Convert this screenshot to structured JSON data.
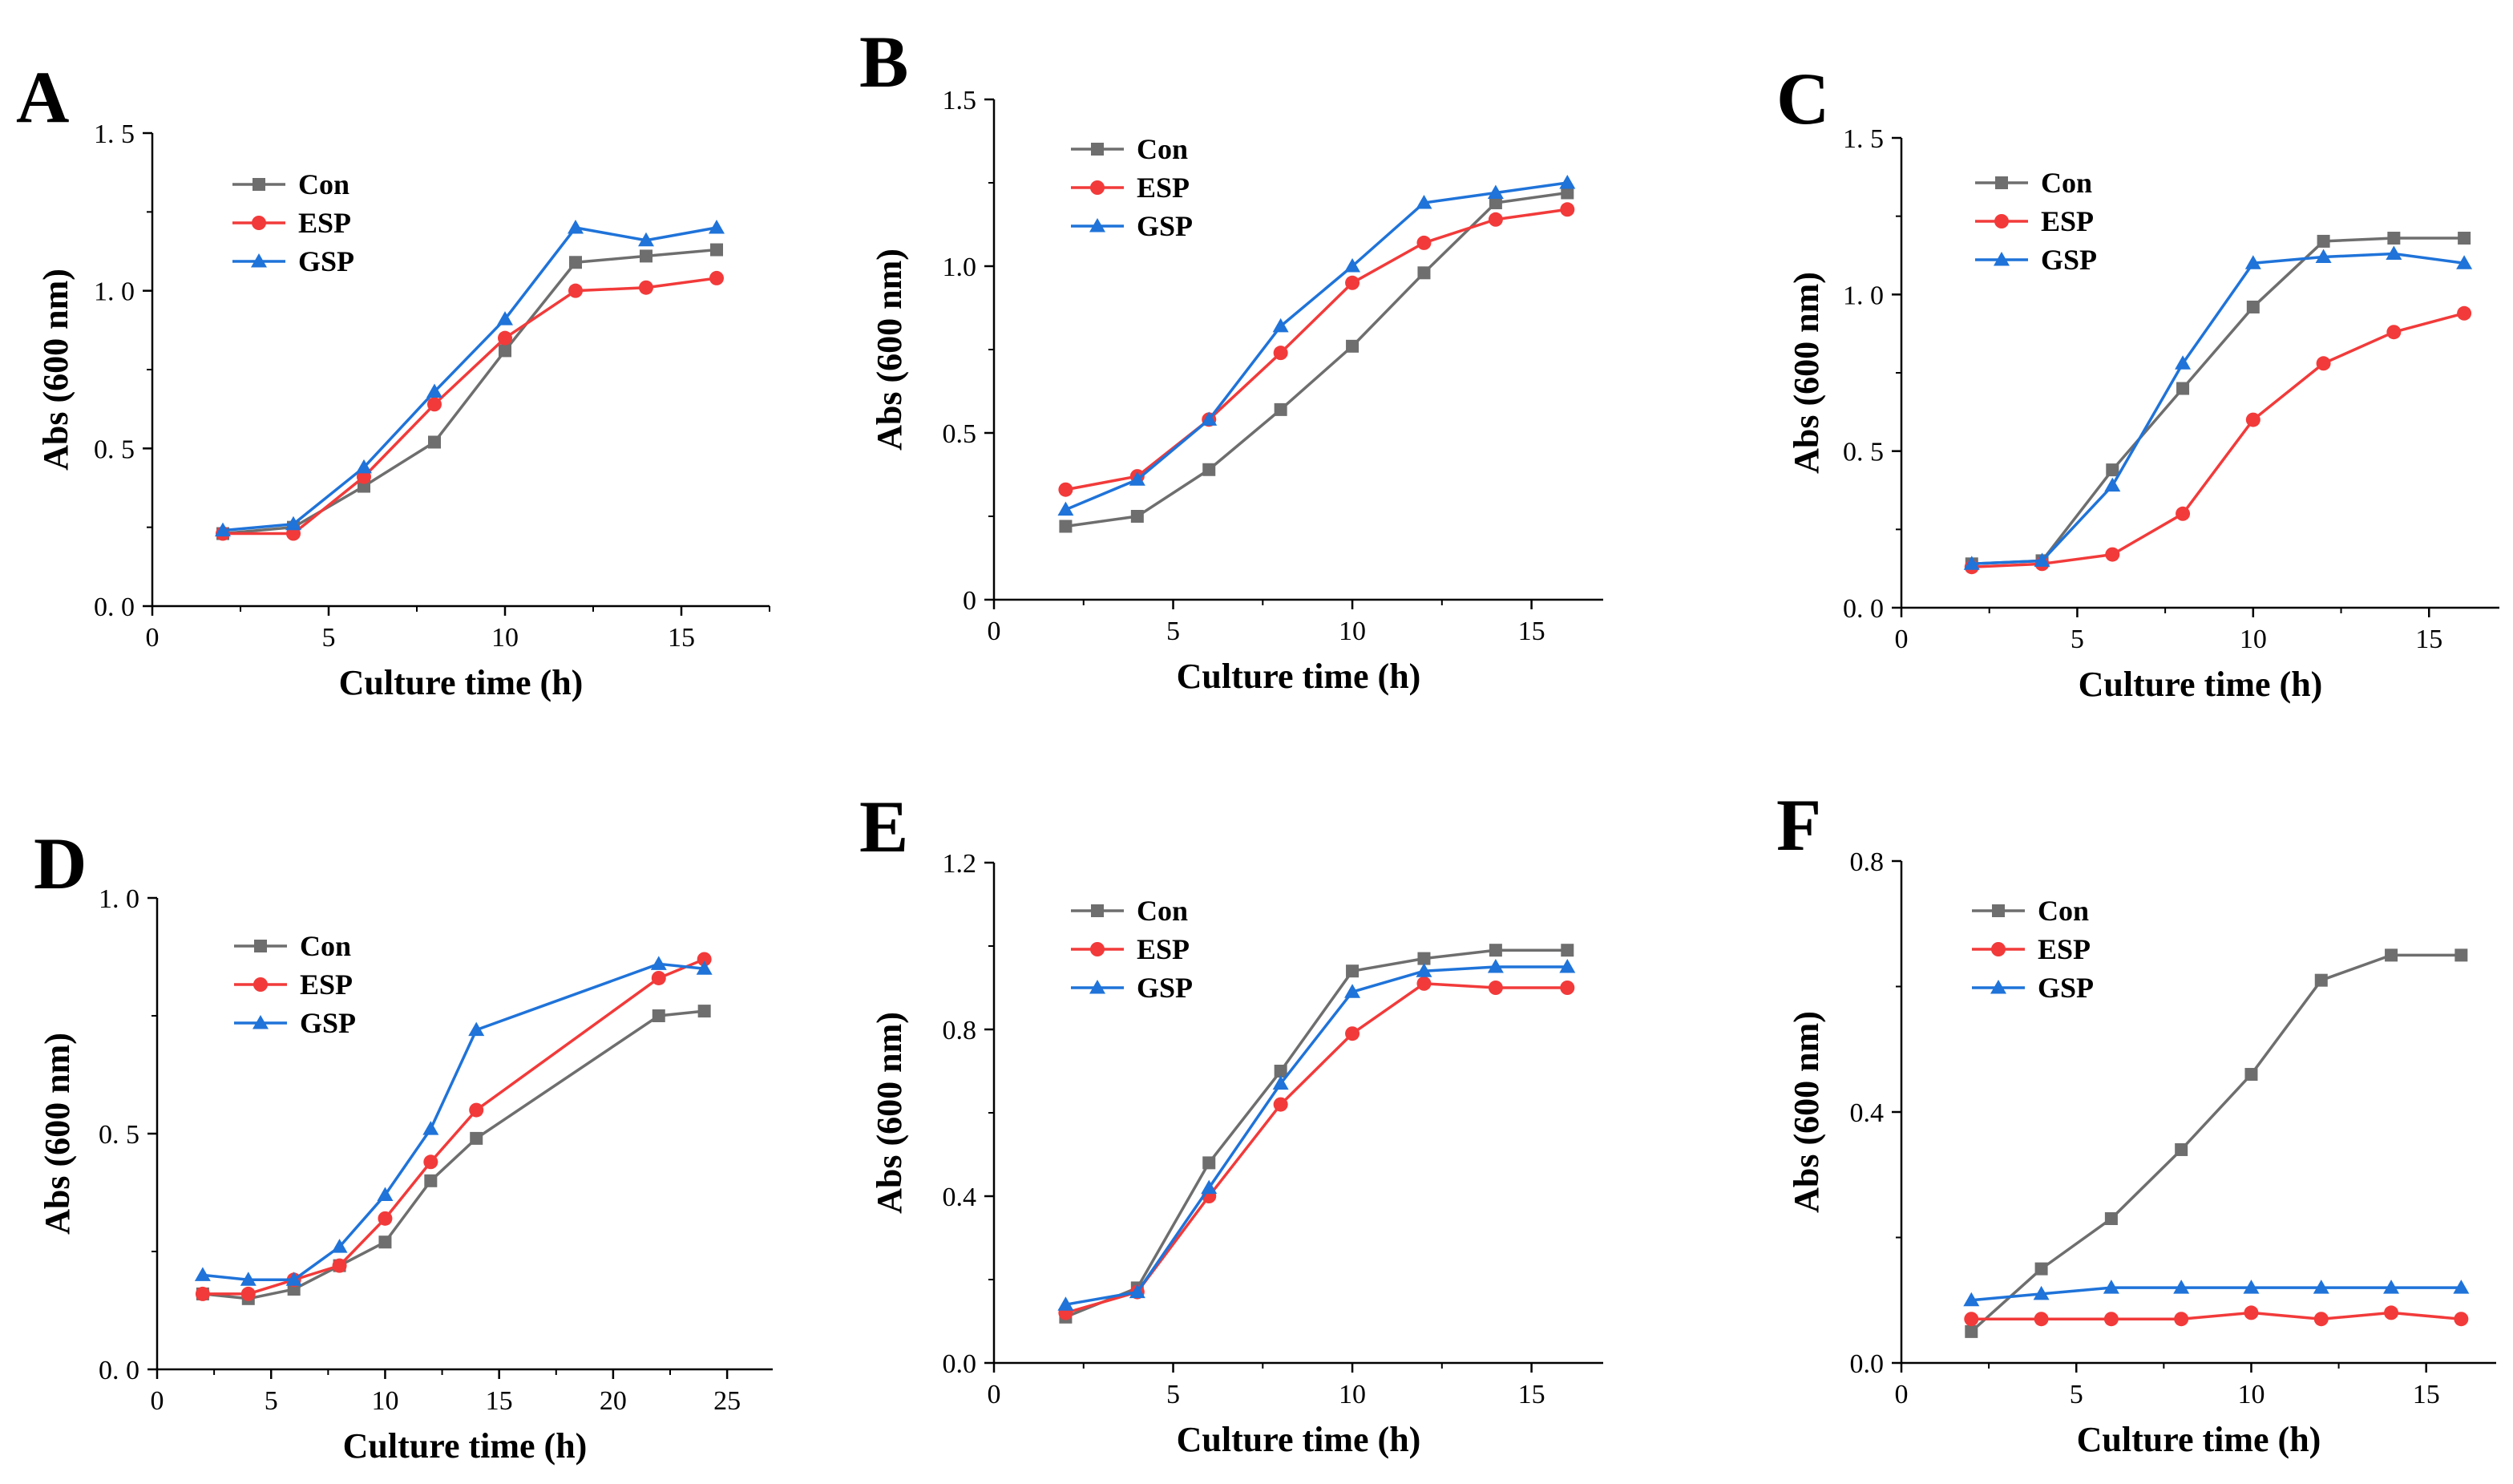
{
  "colors": {
    "Con": "#6e6e6e",
    "ESP": "#f23a3a",
    "GSP": "#1f73d9"
  },
  "chart_data": [
    {
      "panel": "A",
      "type": "line",
      "xlabel": "Culture time (h)",
      "ylabel": "Abs (600 nm)",
      "xlim": [
        0,
        17.5
      ],
      "ylim": [
        0,
        1.5
      ],
      "xticks": [
        "0",
        "5",
        "10",
        "15"
      ],
      "yticks": [
        "0. 0",
        "0. 5",
        "1. 0",
        "1. 5"
      ],
      "legend": [
        "Con",
        "ESP",
        "GSP"
      ],
      "x": [
        2,
        4,
        6,
        8,
        10,
        12,
        14,
        16
      ],
      "series": [
        {
          "name": "Con",
          "marker": "square",
          "values": [
            0.23,
            0.25,
            0.38,
            0.52,
            0.81,
            1.09,
            1.11,
            1.13
          ]
        },
        {
          "name": "ESP",
          "marker": "circle",
          "values": [
            0.23,
            0.23,
            0.41,
            0.64,
            0.85,
            1.0,
            1.01,
            1.04
          ]
        },
        {
          "name": "GSP",
          "marker": "triangle",
          "values": [
            0.24,
            0.26,
            0.44,
            0.68,
            0.91,
            1.2,
            1.16,
            1.2
          ]
        }
      ]
    },
    {
      "panel": "B",
      "type": "line",
      "xlabel": "Culture time (h)",
      "ylabel": "Abs (600 nm)",
      "xlim": [
        0,
        17
      ],
      "ylim": [
        0,
        1.5
      ],
      "xticks": [
        "0",
        "5",
        "10",
        "15"
      ],
      "yticks": [
        "0",
        "0.5",
        "1.0",
        "1.5"
      ],
      "legend": [
        "Con",
        "ESP",
        "GSP"
      ],
      "x": [
        2,
        4,
        6,
        8,
        10,
        12,
        14,
        16
      ],
      "series": [
        {
          "name": "Con",
          "marker": "square",
          "values": [
            0.22,
            0.25,
            0.39,
            0.57,
            0.76,
            0.98,
            1.19,
            1.22
          ]
        },
        {
          "name": "ESP",
          "marker": "circle",
          "values": [
            0.33,
            0.37,
            0.54,
            0.74,
            0.95,
            1.07,
            1.14,
            1.17
          ]
        },
        {
          "name": "GSP",
          "marker": "triangle",
          "values": [
            0.27,
            0.36,
            0.54,
            0.82,
            1.0,
            1.19,
            1.22,
            1.25
          ]
        }
      ]
    },
    {
      "panel": "C",
      "type": "line",
      "xlabel": "Culture time (h)",
      "ylabel": "Abs (600 nm)",
      "xlim": [
        0,
        17
      ],
      "ylim": [
        0,
        1.5
      ],
      "xticks": [
        "0",
        "5",
        "10",
        "15"
      ],
      "yticks": [
        "0. 0",
        "0. 5",
        "1. 0",
        "1. 5"
      ],
      "legend": [
        "Con",
        "ESP",
        "GSP"
      ],
      "x": [
        2,
        4,
        6,
        8,
        10,
        12,
        14,
        16
      ],
      "series": [
        {
          "name": "Con",
          "marker": "square",
          "values": [
            0.14,
            0.15,
            0.44,
            0.7,
            0.96,
            1.17,
            1.18,
            1.18
          ]
        },
        {
          "name": "ESP",
          "marker": "circle",
          "values": [
            0.13,
            0.14,
            0.17,
            0.3,
            0.6,
            0.78,
            0.88,
            0.94
          ]
        },
        {
          "name": "GSP",
          "marker": "triangle",
          "values": [
            0.14,
            0.15,
            0.39,
            0.78,
            1.1,
            1.12,
            1.13,
            1.1
          ]
        }
      ]
    },
    {
      "panel": "D",
      "type": "line",
      "xlabel": "Culture time (h)",
      "ylabel": "Abs (600 nm)",
      "xlim": [
        0,
        27
      ],
      "ylim": [
        0,
        1.0
      ],
      "xticks": [
        "0",
        "5",
        "10",
        "15",
        "20",
        "25"
      ],
      "yticks": [
        "0. 0",
        "0. 5",
        "1. 0"
      ],
      "legend": [
        "Con",
        "ESP",
        "GSP"
      ],
      "x": [
        2,
        4,
        6,
        8,
        10,
        12,
        14,
        22,
        24
      ],
      "series": [
        {
          "name": "Con",
          "marker": "square",
          "values": [
            0.16,
            0.15,
            0.17,
            0.22,
            0.27,
            0.4,
            0.49,
            0.75,
            0.76
          ]
        },
        {
          "name": "ESP",
          "marker": "circle",
          "values": [
            0.16,
            0.16,
            0.19,
            0.22,
            0.32,
            0.44,
            0.55,
            0.83,
            0.87
          ]
        },
        {
          "name": "GSP",
          "marker": "triangle",
          "values": [
            0.2,
            0.19,
            0.19,
            0.26,
            0.37,
            0.51,
            0.72,
            0.86,
            0.85
          ]
        }
      ]
    },
    {
      "panel": "E",
      "type": "line",
      "xlabel": "Culture time (h)",
      "ylabel": "Abs (600 nm)",
      "xlim": [
        0,
        17
      ],
      "ylim": [
        0,
        1.2
      ],
      "xticks": [
        "0",
        "5",
        "10",
        "15"
      ],
      "yticks": [
        "0.0",
        "0.4",
        "0.8",
        "1.2"
      ],
      "legend": [
        "Con",
        "ESP",
        "GSP"
      ],
      "x": [
        2,
        4,
        6,
        8,
        10,
        12,
        14,
        16
      ],
      "series": [
        {
          "name": "Con",
          "marker": "square",
          "values": [
            0.11,
            0.18,
            0.48,
            0.7,
            0.94,
            0.97,
            0.99,
            0.99
          ]
        },
        {
          "name": "ESP",
          "marker": "circle",
          "values": [
            0.12,
            0.17,
            0.4,
            0.62,
            0.79,
            0.91,
            0.9,
            0.9
          ]
        },
        {
          "name": "GSP",
          "marker": "triangle",
          "values": [
            0.14,
            0.17,
            0.42,
            0.67,
            0.89,
            0.94,
            0.95,
            0.95
          ]
        }
      ]
    },
    {
      "panel": "F",
      "type": "line",
      "xlabel": "Culture time (h)",
      "ylabel": "Abs (600 nm)",
      "xlim": [
        0,
        17
      ],
      "ylim": [
        0,
        0.8
      ],
      "xticks": [
        "0",
        "5",
        "10",
        "15"
      ],
      "yticks": [
        "0.0",
        "0.4",
        "0.8"
      ],
      "legend": [
        "Con",
        "ESP",
        "GSP"
      ],
      "x": [
        2,
        4,
        6,
        8,
        10,
        12,
        14,
        16
      ],
      "series": [
        {
          "name": "Con",
          "marker": "square",
          "values": [
            0.05,
            0.15,
            0.23,
            0.34,
            0.46,
            0.61,
            0.65,
            0.65
          ]
        },
        {
          "name": "ESP",
          "marker": "circle",
          "values": [
            0.07,
            0.07,
            0.07,
            0.07,
            0.08,
            0.07,
            0.08,
            0.07
          ]
        },
        {
          "name": "GSP",
          "marker": "triangle",
          "values": [
            0.1,
            0.11,
            0.12,
            0.12,
            0.12,
            0.12,
            0.12,
            0.12
          ]
        }
      ]
    }
  ]
}
